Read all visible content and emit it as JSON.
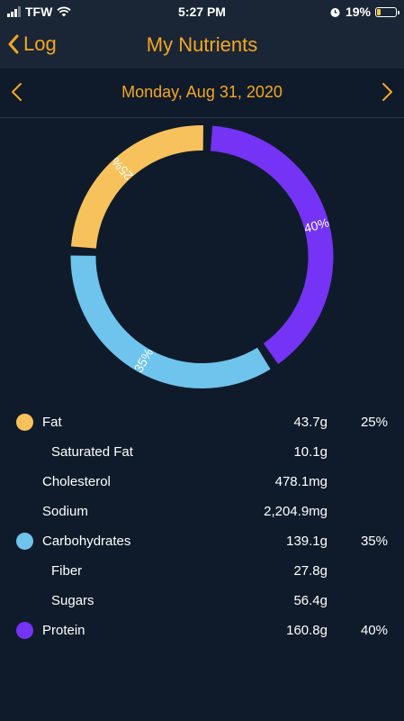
{
  "status_bar": {
    "carrier": "TFW",
    "time": "5:27 PM",
    "battery": "19%"
  },
  "nav": {
    "back_label": "Log",
    "title": "My Nutrients"
  },
  "date": {
    "label": "Monday, Aug 31, 2020"
  },
  "colors": {
    "fat": "#f7c25c",
    "carbs": "#6ec4ec",
    "protein": "#7433f5",
    "accent": "#f5a623"
  },
  "chart_data": {
    "type": "pie",
    "categories": [
      "Fat",
      "Carbohydrates",
      "Protein"
    ],
    "values": [
      25,
      35,
      40
    ],
    "labels": [
      "25%",
      "35%",
      "40%"
    ],
    "title": ""
  },
  "nutrients": [
    {
      "name": "Fat",
      "amount": "43.7g",
      "pct": "25%",
      "dot": "#f7c25c",
      "sub": false
    },
    {
      "name": "Saturated Fat",
      "amount": "10.1g",
      "pct": "",
      "dot": "",
      "sub": true
    },
    {
      "name": "Cholesterol",
      "amount": "478.1mg",
      "pct": "",
      "dot": "",
      "sub": false
    },
    {
      "name": "Sodium",
      "amount": "2,204.9mg",
      "pct": "",
      "dot": "",
      "sub": false
    },
    {
      "name": "Carbohydrates",
      "amount": "139.1g",
      "pct": "35%",
      "dot": "#6ec4ec",
      "sub": false
    },
    {
      "name": "Fiber",
      "amount": "27.8g",
      "pct": "",
      "dot": "",
      "sub": true
    },
    {
      "name": "Sugars",
      "amount": "56.4g",
      "pct": "",
      "dot": "",
      "sub": true
    },
    {
      "name": "Protein",
      "amount": "160.8g",
      "pct": "40%",
      "dot": "#7433f5",
      "sub": false
    }
  ]
}
